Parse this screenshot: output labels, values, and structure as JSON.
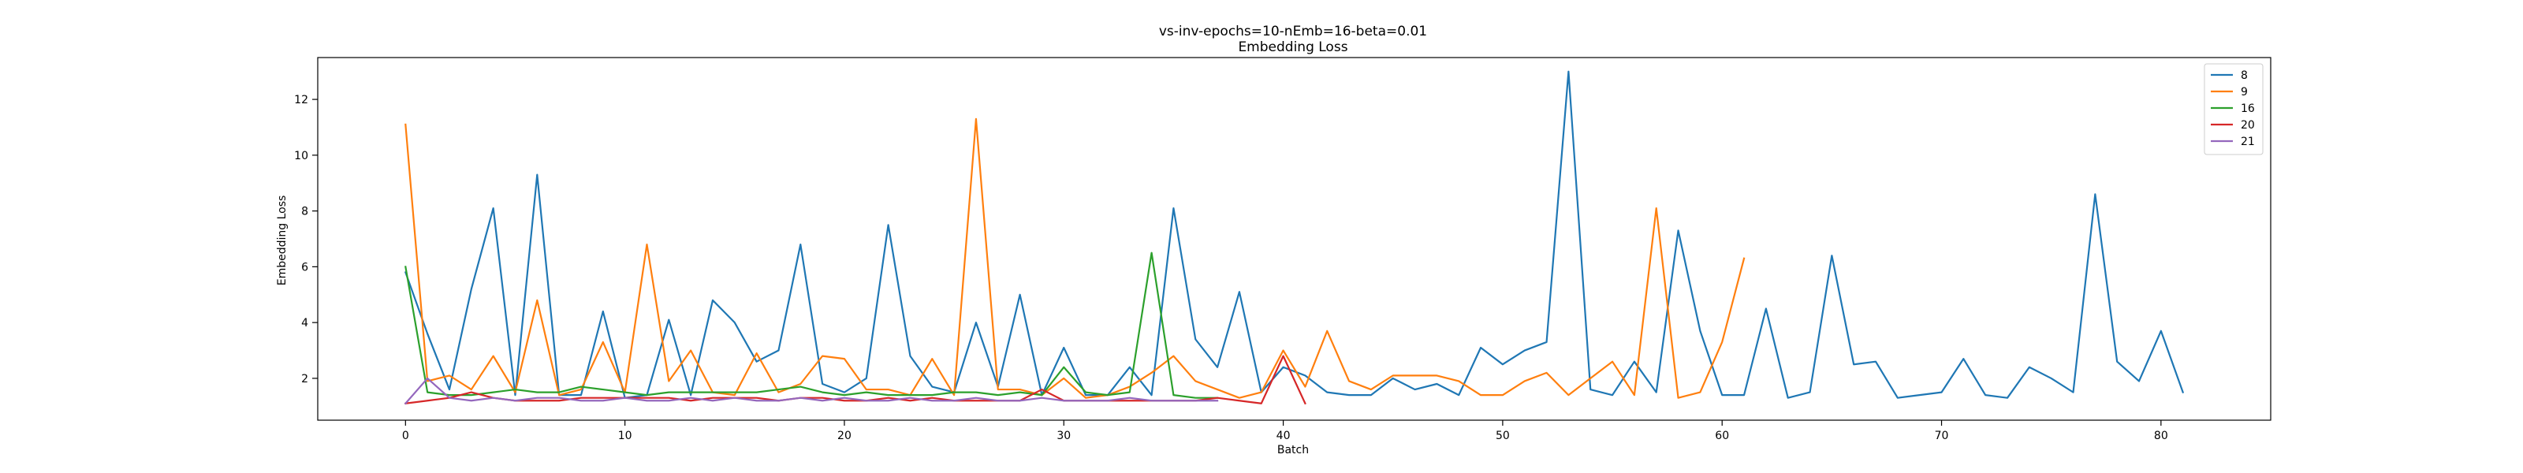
{
  "chart_data": {
    "type": "line",
    "title": "vs-inv-epochs=10-nEmb=16-beta=0.01",
    "subtitle": "Embedding Loss",
    "xlabel": "Batch",
    "ylabel": "Embedding Loss",
    "xlim": [
      -4,
      85
    ],
    "ylim": [
      0.5,
      13.5
    ],
    "xticks": [
      0,
      10,
      20,
      30,
      40,
      50,
      60,
      70,
      80
    ],
    "yticks": [
      2,
      4,
      6,
      8,
      10,
      12
    ],
    "legend_position": "top-right",
    "grid": false,
    "series": [
      {
        "name": "8",
        "color": "#1f77b4",
        "values": [
          5.8,
          3.6,
          1.6,
          5.2,
          8.1,
          1.4,
          9.3,
          1.4,
          1.4,
          4.4,
          1.3,
          1.4,
          4.1,
          1.4,
          4.8,
          4.0,
          2.6,
          3.0,
          6.8,
          1.8,
          1.5,
          2.0,
          7.5,
          2.8,
          1.7,
          1.5,
          4.0,
          1.7,
          5.0,
          1.4,
          3.1,
          1.4,
          1.4,
          2.4,
          1.4,
          8.1,
          3.4,
          2.4,
          5.1,
          1.5,
          2.4,
          2.1,
          1.5,
          1.4,
          1.4,
          2.0,
          1.6,
          1.8,
          1.4,
          3.1,
          2.5,
          3.0,
          3.3,
          13.0,
          1.6,
          1.4,
          2.6,
          1.5,
          7.3,
          3.7,
          1.4,
          1.4,
          4.5,
          1.3,
          1.5,
          6.4,
          2.5,
          2.6,
          1.3,
          1.4,
          1.5,
          2.7,
          1.4,
          1.3,
          2.4,
          2.0,
          1.5,
          8.6,
          2.6,
          1.9,
          3.7,
          1.5
        ]
      },
      {
        "name": "9",
        "color": "#ff7f0e",
        "values": [
          11.1,
          1.9,
          2.1,
          1.6,
          2.8,
          1.5,
          4.8,
          1.4,
          1.6,
          3.3,
          1.5,
          6.8,
          1.9,
          3.0,
          1.5,
          1.4,
          2.9,
          1.5,
          1.8,
          2.8,
          2.7,
          1.6,
          1.6,
          1.4,
          2.7,
          1.4,
          11.3,
          1.6,
          1.6,
          1.4,
          2.0,
          1.3,
          1.4,
          1.7,
          2.2,
          2.8,
          1.9,
          1.6,
          1.3,
          1.5,
          3.0,
          1.7,
          3.7,
          1.9,
          1.6,
          2.1,
          2.1,
          2.1,
          1.9,
          1.4,
          1.4,
          1.9,
          2.2,
          1.4,
          2.0,
          2.6,
          1.4,
          8.1,
          1.3,
          1.5,
          3.3,
          6.3
        ]
      },
      {
        "name": "16",
        "color": "#2ca02c",
        "values": [
          6.0,
          1.5,
          1.4,
          1.4,
          1.5,
          1.6,
          1.5,
          1.5,
          1.7,
          1.6,
          1.5,
          1.4,
          1.5,
          1.5,
          1.5,
          1.5,
          1.5,
          1.6,
          1.7,
          1.5,
          1.4,
          1.5,
          1.4,
          1.4,
          1.4,
          1.5,
          1.5,
          1.4,
          1.5,
          1.4,
          2.4,
          1.5,
          1.4,
          1.5,
          6.5,
          1.4,
          1.3,
          1.3
        ]
      },
      {
        "name": "20",
        "color": "#d62728",
        "values": [
          1.1,
          1.2,
          1.3,
          1.5,
          1.3,
          1.2,
          1.2,
          1.2,
          1.3,
          1.3,
          1.3,
          1.3,
          1.3,
          1.2,
          1.3,
          1.3,
          1.3,
          1.2,
          1.3,
          1.3,
          1.2,
          1.2,
          1.3,
          1.2,
          1.3,
          1.2,
          1.2,
          1.2,
          1.2,
          1.6,
          1.2,
          1.2,
          1.2,
          1.2,
          1.2,
          1.2,
          1.2,
          1.3,
          1.2,
          1.1,
          2.8,
          1.1
        ]
      },
      {
        "name": "21",
        "color": "#9467bd",
        "values": [
          1.1,
          2.0,
          1.3,
          1.2,
          1.3,
          1.2,
          1.3,
          1.3,
          1.2,
          1.2,
          1.3,
          1.2,
          1.2,
          1.3,
          1.2,
          1.3,
          1.2,
          1.2,
          1.3,
          1.2,
          1.3,
          1.2,
          1.2,
          1.3,
          1.2,
          1.2,
          1.3,
          1.2,
          1.2,
          1.3,
          1.2,
          1.2,
          1.2,
          1.3,
          1.2,
          1.2,
          1.2,
          1.2
        ]
      }
    ]
  }
}
